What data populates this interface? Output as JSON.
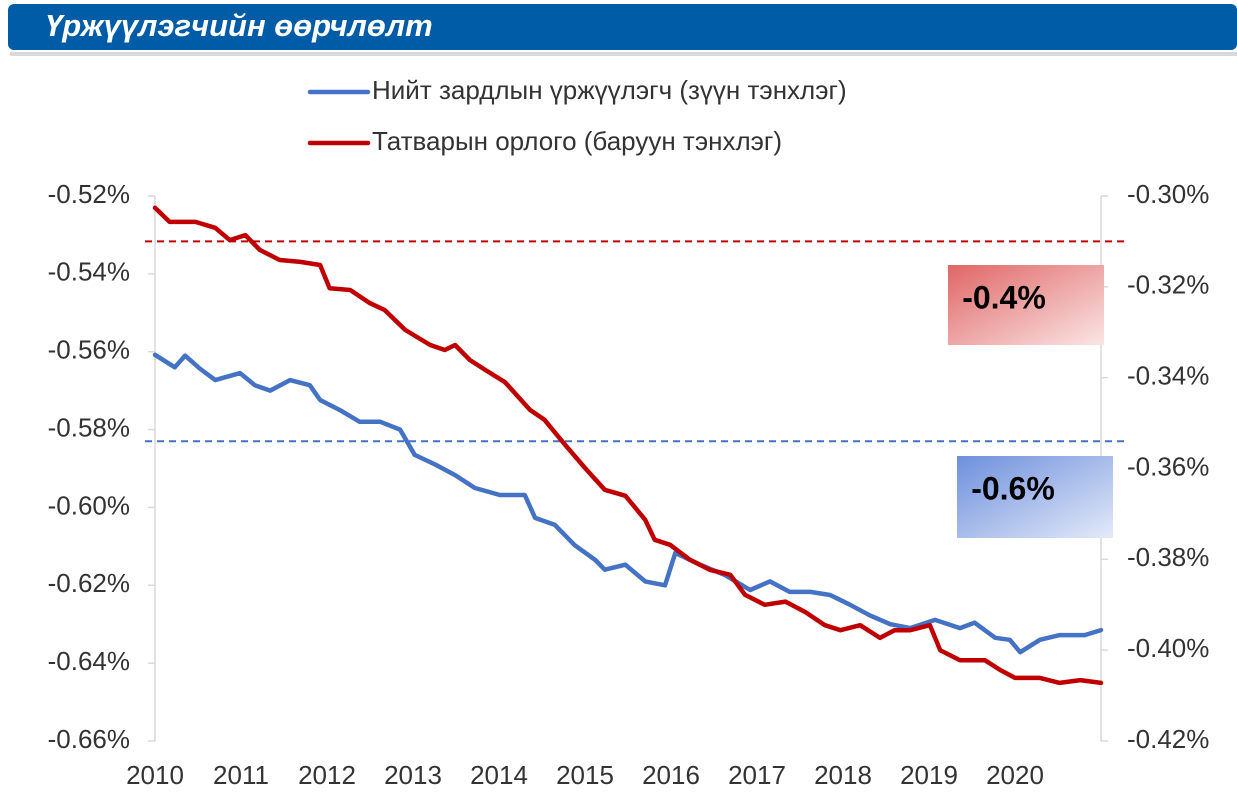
{
  "chart_data": {
    "type": "line",
    "title": "Үржүүлэгчийн өөрчлөлт",
    "xlim": [
      2010,
      2021
    ],
    "xticks": [
      2010,
      2011,
      2012,
      2013,
      2014,
      2015,
      2016,
      2017,
      2018,
      2019,
      2020
    ],
    "ylim": [
      -0.66,
      -0.52
    ],
    "yticks": [
      {
        "value": -0.52,
        "label": "-0.52%"
      },
      {
        "value": -0.54,
        "label": "-0.54%"
      },
      {
        "value": -0.56,
        "label": "-0.56%"
      },
      {
        "value": -0.58,
        "label": "-0.58%"
      },
      {
        "value": -0.6,
        "label": "-0.60%"
      },
      {
        "value": -0.62,
        "label": "-0.62%"
      },
      {
        "value": -0.64,
        "label": "-0.64%"
      },
      {
        "value": -0.66,
        "label": "-0.66%"
      }
    ],
    "y2lim": [
      -0.42,
      -0.3
    ],
    "y2ticks": [
      {
        "value": -0.3,
        "label": "-0.30%"
      },
      {
        "value": -0.32,
        "label": "-0.32%"
      },
      {
        "value": -0.34,
        "label": "-0.34%"
      },
      {
        "value": -0.36,
        "label": "-0.36%"
      },
      {
        "value": -0.38,
        "label": "-0.38%"
      },
      {
        "value": -0.4,
        "label": "-0.40%"
      },
      {
        "value": -0.42,
        "label": "-0.42%"
      }
    ],
    "series": [
      {
        "name": "Нийт зардлын үржүүлэгч (зүүн тэнхлэг)",
        "color": "#4472c4",
        "axis": "y",
        "x": [
          2010.0,
          2010.23,
          2010.35,
          2010.52,
          2010.7,
          2010.99,
          2011.16,
          2011.34,
          2011.57,
          2011.8,
          2011.92,
          2012.15,
          2012.38,
          2012.62,
          2012.85,
          2013.02,
          2013.26,
          2013.49,
          2013.72,
          2014.01,
          2014.3,
          2014.42,
          2014.65,
          2014.88,
          2015.12,
          2015.23,
          2015.47,
          2015.7,
          2015.93,
          2016.05,
          2016.34,
          2016.63,
          2016.92,
          2017.15,
          2017.38,
          2017.62,
          2017.85,
          2018.08,
          2018.31,
          2018.55,
          2018.78,
          2019.07,
          2019.36,
          2019.53,
          2019.77,
          2019.94,
          2020.06,
          2020.29,
          2020.52,
          2020.81,
          2021.0
        ],
        "values": [
          -0.5608,
          -0.564,
          -0.561,
          -0.5643,
          -0.5673,
          -0.5655,
          -0.5686,
          -0.57,
          -0.5673,
          -0.5686,
          -0.5724,
          -0.575,
          -0.578,
          -0.578,
          -0.58,
          -0.5865,
          -0.589,
          -0.5917,
          -0.595,
          -0.5968,
          -0.5968,
          -0.6027,
          -0.6045,
          -0.6097,
          -0.6135,
          -0.616,
          -0.6147,
          -0.619,
          -0.62,
          -0.6117,
          -0.6147,
          -0.6174,
          -0.6212,
          -0.619,
          -0.6217,
          -0.6217,
          -0.6225,
          -0.625,
          -0.6277,
          -0.63,
          -0.631,
          -0.6289,
          -0.631,
          -0.6296,
          -0.6335,
          -0.634,
          -0.6372,
          -0.634,
          -0.6328,
          -0.6328,
          -0.6315
        ]
      },
      {
        "name": "Татварын орлого (баруун тэнхлэг)",
        "color": "#c00000",
        "axis": "y2",
        "x": [
          2010.0,
          2010.17,
          2010.47,
          2010.7,
          2010.87,
          2011.05,
          2011.22,
          2011.45,
          2011.69,
          2011.92,
          2012.03,
          2012.27,
          2012.5,
          2012.67,
          2012.91,
          2013.2,
          2013.37,
          2013.49,
          2013.66,
          2013.84,
          2014.07,
          2014.36,
          2014.53,
          2014.77,
          2015.0,
          2015.23,
          2015.47,
          2015.7,
          2015.81,
          2015.99,
          2016.22,
          2016.45,
          2016.69,
          2016.86,
          2017.09,
          2017.33,
          2017.56,
          2017.79,
          2017.97,
          2018.2,
          2018.43,
          2018.6,
          2018.78,
          2019.01,
          2019.13,
          2019.36,
          2019.65,
          2019.83,
          2020.0,
          2020.29,
          2020.52,
          2020.76,
          2021.0
        ],
        "values": [
          -0.3026,
          -0.3057,
          -0.3057,
          -0.307,
          -0.3097,
          -0.3086,
          -0.3119,
          -0.3141,
          -0.3145,
          -0.3152,
          -0.3203,
          -0.3207,
          -0.3236,
          -0.3251,
          -0.3295,
          -0.3328,
          -0.3339,
          -0.3328,
          -0.3361,
          -0.3383,
          -0.341,
          -0.3471,
          -0.3493,
          -0.3548,
          -0.3599,
          -0.3647,
          -0.366,
          -0.3713,
          -0.3757,
          -0.3768,
          -0.3801,
          -0.3823,
          -0.3834,
          -0.3878,
          -0.39,
          -0.3893,
          -0.3916,
          -0.3945,
          -0.3956,
          -0.3945,
          -0.3973,
          -0.3956,
          -0.3956,
          -0.3945,
          -0.4,
          -0.4022,
          -0.4022,
          -0.4044,
          -0.4061,
          -0.4061,
          -0.4072,
          -0.4066,
          -0.4072
        ]
      }
    ],
    "reference_lines": [
      {
        "value": -0.31,
        "axis": "y2",
        "color": "#c00000"
      },
      {
        "value": -0.583,
        "axis": "y",
        "color": "#4472c4"
      }
    ],
    "annotations": [
      {
        "text": "-0.4%",
        "color": "#e06666"
      },
      {
        "text": "-0.6%",
        "color": "#6d8fdc"
      }
    ]
  }
}
